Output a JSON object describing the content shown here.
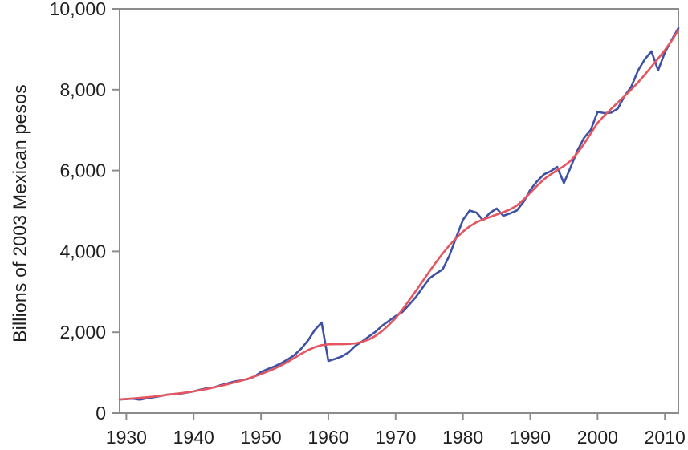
{
  "colors": {
    "background": "#ffffff",
    "axis": "#8c8c8c",
    "text": "#1f1f1f",
    "data_line": "#3f51a5",
    "trend_line": "#e5555f"
  },
  "chart_data": {
    "type": "line",
    "title": "",
    "xlabel": "",
    "ylabel": "Billions of 2003 Mexican pesos",
    "xlim": [
      1929,
      2012
    ],
    "ylim": [
      0,
      10000
    ],
    "grid": false,
    "legend": "none",
    "x_ticks": [
      1930,
      1940,
      1950,
      1960,
      1970,
      1980,
      1990,
      2000,
      2010
    ],
    "x_tick_labels": [
      "1930",
      "1940",
      "1950",
      "1960",
      "1970",
      "1980",
      "1990",
      "2000",
      "2010"
    ],
    "y_ticks": [
      0,
      2000,
      4000,
      6000,
      8000,
      10000
    ],
    "y_tick_labels": [
      "0",
      "2,000",
      "4,000",
      "6,000",
      "8,000",
      "10,000"
    ],
    "x": [
      1929,
      1930,
      1931,
      1932,
      1933,
      1934,
      1935,
      1936,
      1937,
      1938,
      1939,
      1940,
      1941,
      1942,
      1943,
      1944,
      1945,
      1946,
      1947,
      1948,
      1949,
      1950,
      1951,
      1952,
      1953,
      1954,
      1955,
      1956,
      1957,
      1958,
      1959,
      1960,
      1961,
      1962,
      1963,
      1964,
      1965,
      1966,
      1967,
      1968,
      1969,
      1970,
      1971,
      1972,
      1973,
      1974,
      1975,
      1976,
      1977,
      1978,
      1979,
      1980,
      1981,
      1982,
      1983,
      1984,
      1985,
      1986,
      1987,
      1988,
      1989,
      1990,
      1991,
      1992,
      1993,
      1994,
      1995,
      1996,
      1997,
      1998,
      1999,
      2000,
      2001,
      2002,
      2003,
      2004,
      2005,
      2006,
      2007,
      2008,
      2009,
      2010,
      2011,
      2012
    ],
    "series": [
      {
        "name": "blue-data-series",
        "color": "#3f51a5",
        "values": [
          335,
          345,
          355,
          330,
          365,
          390,
          420,
          455,
          470,
          480,
          505,
          535,
          580,
          615,
          635,
          690,
          735,
          780,
          805,
          840,
          900,
          1015,
          1090,
          1155,
          1235,
          1330,
          1440,
          1600,
          1800,
          2060,
          2240,
          1290,
          1340,
          1400,
          1500,
          1660,
          1770,
          1890,
          2010,
          2160,
          2280,
          2400,
          2500,
          2680,
          2870,
          3100,
          3330,
          3450,
          3560,
          3900,
          4350,
          4780,
          5010,
          4960,
          4770,
          4950,
          5060,
          4880,
          4940,
          5010,
          5220,
          5520,
          5730,
          5900,
          5980,
          6090,
          5690,
          6080,
          6490,
          6810,
          7010,
          7450,
          7420,
          7430,
          7530,
          7840,
          8070,
          8470,
          8750,
          8950,
          8480,
          8920,
          9230,
          9520
        ]
      },
      {
        "name": "red-trend-series",
        "color": "#e5555f",
        "values": [
          340,
          350,
          362,
          375,
          390,
          407,
          427,
          450,
          470,
          490,
          512,
          537,
          567,
          600,
          635,
          672,
          712,
          755,
          800,
          850,
          905,
          965,
          1030,
          1100,
          1180,
          1270,
          1370,
          1470,
          1560,
          1630,
          1680,
          1700,
          1705,
          1705,
          1710,
          1725,
          1760,
          1820,
          1910,
          2030,
          2180,
          2350,
          2560,
          2790,
          3020,
          3260,
          3500,
          3730,
          3950,
          4150,
          4330,
          4490,
          4620,
          4720,
          4790,
          4850,
          4910,
          4970,
          5040,
          5130,
          5280,
          5450,
          5620,
          5780,
          5900,
          6010,
          6110,
          6240,
          6430,
          6660,
          6920,
          7180,
          7360,
          7520,
          7680,
          7840,
          8000,
          8180,
          8370,
          8570,
          8770,
          8980,
          9210,
          9470
        ]
      }
    ]
  }
}
